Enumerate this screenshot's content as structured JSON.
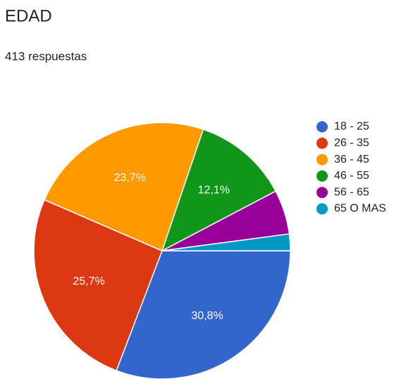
{
  "chart_data": {
    "type": "pie",
    "title": "EDAD",
    "subtitle": "413 respuestas",
    "categories": [
      "18 - 25",
      "26 - 35",
      "36 - 45",
      "46 - 55",
      "56 - 65",
      "65 O MAS"
    ],
    "values": [
      30.8,
      25.7,
      23.7,
      12.1,
      5.6,
      2.1
    ],
    "value_labels": [
      "30,8%",
      "25,7%",
      "23,7%",
      "12,1%",
      null,
      null
    ],
    "colors": [
      "#3366cc",
      "#dc3912",
      "#ff9900",
      "#109618",
      "#990099",
      "#0099c6"
    ],
    "legend": "right"
  }
}
